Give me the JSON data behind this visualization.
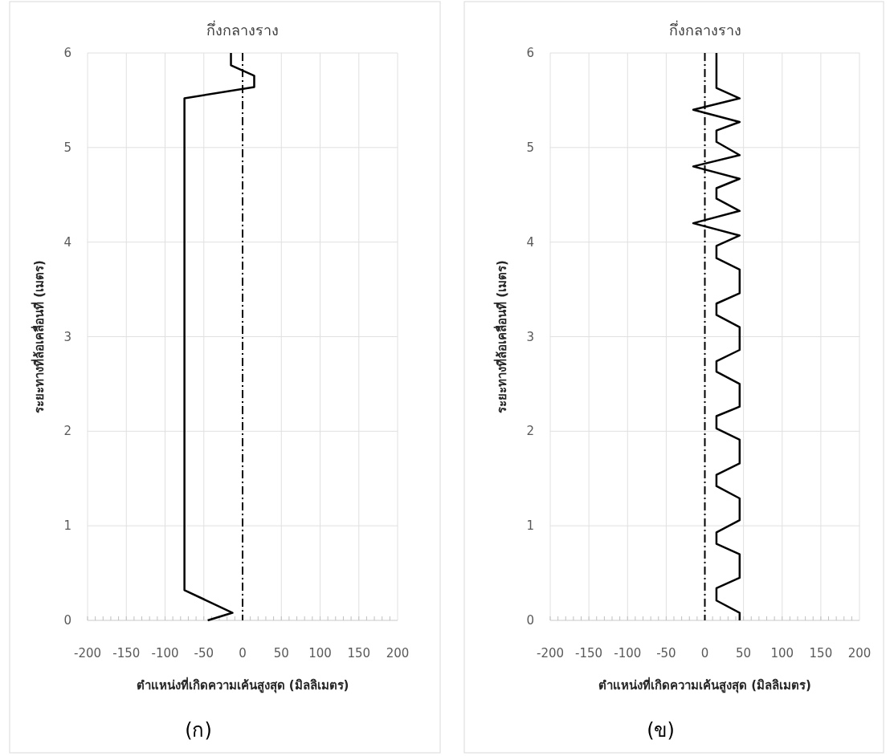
{
  "chart_data": [
    {
      "type": "line",
      "title": "กึ่งกลางราง",
      "xlabel": "ตำแหน่งที่เกิดความเค้นสูงสุด (มิลลิเมตร)",
      "ylabel": "ระยะทางที่ล้อเคลื่อนที่ (เมตร)",
      "annotations": [
        "(ก)"
      ],
      "xlim": [
        -200,
        200
      ],
      "xticks": [
        -200,
        -150,
        -100,
        -50,
        0,
        50,
        100,
        150,
        200
      ],
      "ylim": [
        0,
        6
      ],
      "yticks": [
        0,
        1,
        2,
        3,
        4,
        5,
        6
      ],
      "grid": true,
      "ref_lines": [
        {
          "axis": "x",
          "value": 0,
          "color": "#000000",
          "line_style": "dashed"
        }
      ],
      "series": [
        {
          "color": "#000000",
          "x": [
            -45,
            -13,
            -75,
            -75,
            15,
            15,
            -15,
            -15
          ],
          "values": [
            0,
            0.08,
            0.32,
            5.52,
            5.64,
            5.76,
            5.87,
            6
          ]
        }
      ]
    },
    {
      "type": "line",
      "title": "กึ่งกลางราง",
      "xlabel": "ตำแหน่งที่เกิดความเค้นสูงสุด (มิลลิเมตร)",
      "ylabel": "ระยะทางที่ล้อเคลื่อนที่ (เมตร)",
      "annotations": [
        "(ข)"
      ],
      "xlim": [
        -200,
        200
      ],
      "xticks": [
        -200,
        -150,
        -100,
        -50,
        0,
        50,
        100,
        150,
        200
      ],
      "ylim": [
        0,
        6
      ],
      "yticks": [
        0,
        1,
        2,
        3,
        4,
        5,
        6
      ],
      "grid": true,
      "ref_lines": [
        {
          "axis": "x",
          "value": 0,
          "color": "#000000",
          "line_style": "dashed"
        }
      ],
      "series": [
        {
          "color": "#000000",
          "x": [
            45,
            45,
            15,
            15,
            45,
            45,
            15,
            15,
            45,
            45,
            15,
            15,
            45,
            45,
            15,
            15,
            45,
            45,
            15,
            15,
            45,
            45,
            15,
            15,
            45,
            45,
            15,
            15,
            45,
            -15,
            45,
            15,
            15,
            45,
            -15,
            45,
            15,
            15,
            45,
            -15,
            45,
            15,
            15
          ],
          "values": [
            0,
            0.08,
            0.21,
            0.34,
            0.45,
            0.7,
            0.81,
            0.93,
            1.06,
            1.29,
            1.42,
            1.54,
            1.66,
            1.91,
            2.03,
            2.16,
            2.26,
            2.5,
            2.63,
            2.74,
            2.86,
            3.1,
            3.23,
            3.35,
            3.46,
            3.71,
            3.83,
            3.96,
            4.07,
            4.2,
            4.33,
            4.46,
            4.57,
            4.67,
            4.8,
            4.92,
            5.06,
            5.18,
            5.27,
            5.4,
            5.52,
            5.63,
            6
          ]
        }
      ]
    }
  ]
}
